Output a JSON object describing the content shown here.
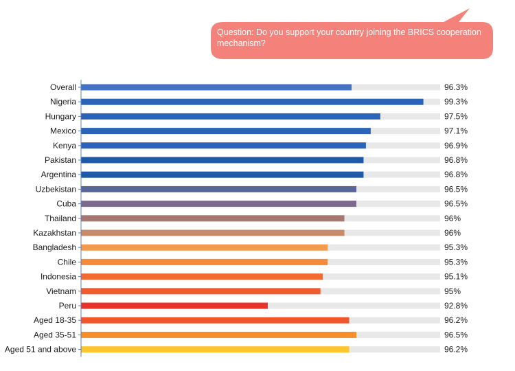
{
  "question": "Question: Do you support your country joining the BRICS cooperation mechanism?",
  "colors": {
    "bubble": "#f4827b",
    "track": "#e8e8e8",
    "axis": "#5a7fb8"
  },
  "chart_data": {
    "type": "bar",
    "orientation": "horizontal",
    "title": "",
    "xlabel": "",
    "ylabel": "",
    "xlim": [
      85,
      100
    ],
    "grid": false,
    "legend": "none",
    "categories": [
      "Overall",
      "Nigeria",
      "Hungary",
      "Mexico",
      "Kenya",
      "Pakistan",
      "Argentina",
      "Uzbekistan",
      "Cuba",
      "Thailand",
      "Kazakhstan",
      "Bangladesh",
      "Chile",
      "Indonesia",
      "Vietnam",
      "Peru",
      "Aged 18-35",
      "Aged 35-51",
      "Aged 51 and above"
    ],
    "values": [
      96.3,
      99.3,
      97.5,
      97.1,
      96.9,
      96.8,
      96.8,
      96.5,
      96.5,
      96,
      96,
      95.3,
      95.3,
      95.1,
      95,
      92.8,
      96.2,
      96.5,
      96.2
    ],
    "value_labels": [
      "96.3%",
      "99.3%",
      "97.5%",
      "97.1%",
      "96.9%",
      "96.8%",
      "96.8%",
      "96.5%",
      "96.5%",
      "96%",
      "96%",
      "95.3%",
      "95.3%",
      "95.1%",
      "95%",
      "92.8%",
      "96.2%",
      "96.5%",
      "96.2%"
    ],
    "bar_colors": [
      "#4472c4",
      "#2a63b8",
      "#2a63b8",
      "#2a63b8",
      "#2a63b8",
      "#1f58a8",
      "#1f58a8",
      "#5a6698",
      "#7c6a8c",
      "#a87670",
      "#c98a6a",
      "#f39a4c",
      "#f58a3a",
      "#f36a30",
      "#f05a2c",
      "#e8332a",
      "#f0552c",
      "#f58f2a",
      "#fcc62e"
    ]
  }
}
